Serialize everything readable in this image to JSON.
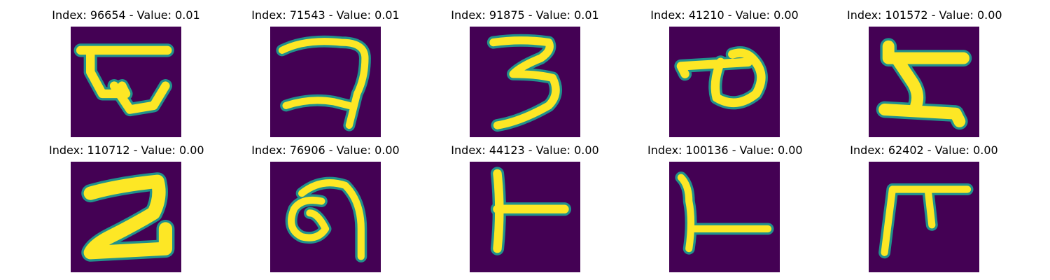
{
  "colors": {
    "background": "#440154",
    "stroke": "#fde725",
    "edge_teal": "#21918c",
    "edge_green": "#5ec962"
  },
  "panels": [
    {
      "title": "Index: 96654 - Value: 0.01",
      "glyph": "devanagari-like-letter"
    },
    {
      "title": "Index: 71543 - Value: 0.01",
      "glyph": "devanagari-like-letter"
    },
    {
      "title": "Index: 91875 - Value: 0.01",
      "glyph": "digit-three-like"
    },
    {
      "title": "Index: 41210 - Value: 0.00",
      "glyph": "loop-letter"
    },
    {
      "title": "Index: 101572 - Value: 0.00",
      "glyph": "devanagari-like-letter"
    },
    {
      "title": "Index: 110712 - Value: 0.00",
      "glyph": "z-like-letter"
    },
    {
      "title": "Index: 76906 - Value: 0.00",
      "glyph": "hook-letter"
    },
    {
      "title": "Index: 44123 - Value: 0.00",
      "glyph": "t-like-letter"
    },
    {
      "title": "Index: 100136 - Value: 0.00",
      "glyph": "l-like-letter"
    },
    {
      "title": "Index: 62402 - Value: 0.00",
      "glyph": "f-like-letter"
    }
  ]
}
